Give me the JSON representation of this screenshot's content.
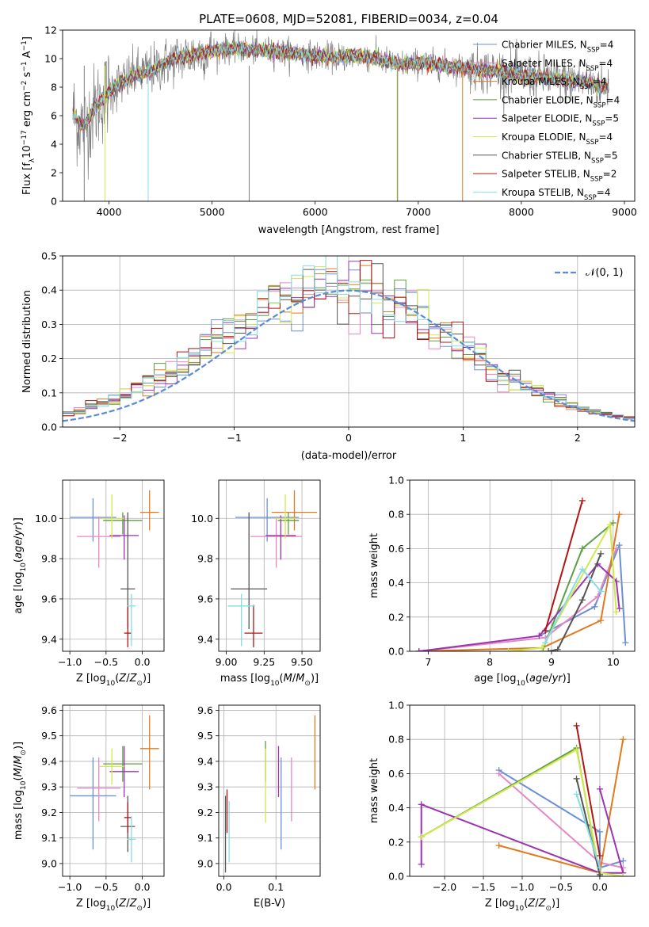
{
  "figure": {
    "title": "PLATE=0608, MJD=52081, FIBERID=0034, z=0.04"
  },
  "models": [
    {
      "name": "Chabrier MILES, N$_{SSP}$=4",
      "label_main": "Chabrier MILES, N",
      "label_sub": "SSP",
      "label_tail": "=4",
      "color": "#6b8fd6"
    },
    {
      "name": "Salpeter MILES, N$_{SSP}$=4",
      "label_main": "Salpeter MILES, N",
      "label_sub": "SSP",
      "label_tail": "=4",
      "color": "#e488c4"
    },
    {
      "name": "Kroupa MILES, N$_{SSP}$=4",
      "label_main": "Kroupa MILES, N",
      "label_sub": "SSP",
      "label_tail": "=4",
      "color": "#e07a1f"
    },
    {
      "name": "Chabrier ELODIE, N$_{SSP}$=4",
      "label_main": "Chabrier ELODIE, N",
      "label_sub": "SSP",
      "label_tail": "=4",
      "color": "#5e9e46"
    },
    {
      "name": "Salpeter ELODIE, N$_{SSP}$=5",
      "label_main": "Salpeter ELODIE, N",
      "label_sub": "SSP",
      "label_tail": "=5",
      "color": "#9b34b0"
    },
    {
      "name": "Kroupa ELODIE, N$_{SSP}$=4",
      "label_main": "Kroupa ELODIE, N",
      "label_sub": "SSP",
      "label_tail": "=4",
      "color": "#d3e84a"
    },
    {
      "name": "Chabrier STELIB, N$_{SSP}$=5",
      "label_main": "Chabrier STELIB, N",
      "label_sub": "SSP",
      "label_tail": "=5",
      "color": "#555555"
    },
    {
      "name": "Salpeter STELIB, N$_{SSP}$=2",
      "label_main": "Salpeter STELIB, N",
      "label_sub": "SSP",
      "label_tail": "=2",
      "color": "#b01616"
    },
    {
      "name": "Kroupa STELIB, N$_{SSP}$=4",
      "label_main": "Kroupa STELIB, N",
      "label_sub": "SSP",
      "label_tail": "=4",
      "color": "#86dde4"
    }
  ],
  "chart_data": [
    {
      "type": "line",
      "id": "spectrum",
      "title": "PLATE=0608, MJD=52081, FIBERID=0034, z=0.04",
      "xlabel": "wavelength [Angstrom, rest frame]",
      "ylabel_parts": [
        "Flux [f",
        "λ",
        "10",
        "−17",
        " erg cm",
        "−2",
        " s",
        "−1",
        " A",
        "−1",
        "]"
      ],
      "xlim": [
        3550,
        9100
      ],
      "ylim": [
        0,
        12
      ],
      "xticks": [
        4000,
        5000,
        6000,
        7000,
        8000,
        9000
      ],
      "yticks": [
        0,
        2,
        4,
        6,
        8,
        10,
        12
      ],
      "data_color": "#808080",
      "grid": false,
      "legend": "right",
      "continuum_x": [
        3650,
        3700,
        3760,
        3850,
        3950,
        4050,
        4150,
        4250,
        4350,
        4450,
        4550,
        4650,
        4750,
        4850,
        4950,
        5050,
        5200,
        5400,
        5600,
        5800,
        6000,
        6200,
        6400,
        6600,
        6800,
        7000,
        7200,
        7400,
        7600,
        7800,
        8000,
        8200,
        8400,
        8600,
        8800
      ],
      "continuum_y": [
        6.2,
        5.6,
        5.2,
        6.4,
        7.3,
        8.0,
        8.4,
        8.9,
        9.0,
        9.3,
        9.7,
        10.0,
        10.2,
        10.3,
        10.5,
        10.6,
        10.7,
        10.6,
        10.5,
        10.4,
        10.2,
        10.1,
        10.2,
        10.0,
        9.6,
        9.7,
        9.6,
        9.4,
        9.2,
        9.1,
        8.8,
        8.7,
        8.5,
        8.4,
        8.0
      ]
    },
    {
      "type": "line",
      "id": "residuals",
      "xlabel": "(data-model)/error",
      "ylabel": "Normed distribution",
      "xlim": [
        -2.5,
        2.5
      ],
      "ylim": [
        0,
        0.5
      ],
      "xticks": [
        -2,
        -1,
        0,
        1,
        2
      ],
      "xtick_labels": [
        "−2",
        "−1",
        "0",
        "1",
        "2"
      ],
      "yticks": [
        0.0,
        0.1,
        0.2,
        0.3,
        0.4,
        0.5
      ],
      "ytick_labels": [
        "0.0",
        "0.1",
        "0.2",
        "0.3",
        "0.4",
        "0.5"
      ],
      "grid": true,
      "legend_label": "𝒩(0, 1)",
      "legend_color": "#5b8ad6",
      "bin_start": -2.5,
      "bin_width": 0.1
    },
    {
      "type": "scatter",
      "id": "age_vs_Z",
      "xlabel": "Z [log10(Z/Z⊙)]",
      "ylabel": "age  [log10(age/yr)]",
      "xlim": [
        -1.1,
        0.3
      ],
      "ylim": [
        9.34,
        10.19
      ],
      "xticks": [
        -1.0,
        -0.5,
        0.0
      ],
      "xtick_labels": [
        "−1.0",
        "−0.5",
        "0.0"
      ],
      "yticks": [
        9.4,
        9.6,
        9.8,
        10.0
      ],
      "ytick_labels": [
        "9.4",
        "9.6",
        "9.8",
        "10.0"
      ],
      "grid": true,
      "points": [
        {
          "m": 0,
          "x": -0.68,
          "xerr": [
            0.32,
            0.32
          ],
          "y": 10.005,
          "yerr": [
            0.12,
            0.095
          ]
        },
        {
          "m": 1,
          "x": -0.6,
          "xerr": [
            0.3,
            0.3
          ],
          "y": 9.91,
          "yerr": [
            0.155,
            0.1
          ]
        },
        {
          "m": 2,
          "x": 0.1,
          "xerr": [
            0.13,
            0.13
          ],
          "y": 10.03,
          "yerr": [
            0.09,
            0.11
          ]
        },
        {
          "m": 3,
          "x": -0.27,
          "xerr": [
            0.27,
            0.27
          ],
          "y": 9.99,
          "yerr": [
            0.07,
            0.04
          ]
        },
        {
          "m": 4,
          "x": -0.25,
          "xerr": [
            0.2,
            0.2
          ],
          "y": 9.915,
          "yerr": [
            0.12,
            0.1
          ]
        },
        {
          "m": 5,
          "x": -0.42,
          "xerr": [
            0.17,
            0.17
          ],
          "y": 10.0,
          "yerr": [
            0.1,
            0.12
          ]
        },
        {
          "m": 6,
          "x": -0.2,
          "xerr": [
            0.1,
            0.1
          ],
          "y": 9.65,
          "yerr": [
            0.2,
            0.38
          ]
        },
        {
          "m": 7,
          "x": -0.2,
          "xerr": [
            0.05,
            0.05
          ],
          "y": 9.43,
          "yerr": [
            0.07,
            0.14
          ]
        },
        {
          "m": 8,
          "x": -0.15,
          "xerr": [
            0.06,
            0.06
          ],
          "y": 9.565,
          "yerr": [
            0.2,
            0.06
          ]
        }
      ]
    },
    {
      "type": "scatter",
      "id": "age_vs_mass",
      "xlabel": "mass [log10(M/M⊙)]",
      "ylabel": "",
      "xlim": [
        8.95,
        9.62
      ],
      "ylim": [
        9.34,
        10.19
      ],
      "xticks": [
        9.0,
        9.25,
        9.5
      ],
      "xtick_labels": [
        "9.00",
        "9.25",
        "9.50"
      ],
      "yticks": [
        9.4,
        9.6,
        9.8,
        10.0
      ],
      "ytick_labels": [
        "9.4",
        "9.6",
        "9.8",
        "10.0"
      ],
      "grid": true,
      "points": [
        {
          "m": 0,
          "x": 9.27,
          "xerr": [
            0.21,
            0.21
          ],
          "y": 10.005,
          "yerr": [
            0.12,
            0.095
          ]
        },
        {
          "m": 1,
          "x": 9.33,
          "xerr": [
            0.17,
            0.17
          ],
          "y": 9.91,
          "yerr": [
            0.155,
            0.1
          ]
        },
        {
          "m": 2,
          "x": 9.45,
          "xerr": [
            0.15,
            0.15
          ],
          "y": 10.03,
          "yerr": [
            0.09,
            0.11
          ]
        },
        {
          "m": 3,
          "x": 9.41,
          "xerr": [
            0.07,
            0.07
          ],
          "y": 9.99,
          "yerr": [
            0.07,
            0.04
          ]
        },
        {
          "m": 4,
          "x": 9.36,
          "xerr": [
            0.1,
            0.1
          ],
          "y": 9.915,
          "yerr": [
            0.12,
            0.1
          ]
        },
        {
          "m": 5,
          "x": 9.39,
          "xerr": [
            0.07,
            0.07
          ],
          "y": 10.0,
          "yerr": [
            0.1,
            0.12
          ]
        },
        {
          "m": 6,
          "x": 9.15,
          "xerr": [
            0.12,
            0.12
          ],
          "y": 9.65,
          "yerr": [
            0.2,
            0.38
          ]
        },
        {
          "m": 7,
          "x": 9.18,
          "xerr": [
            0.06,
            0.06
          ],
          "y": 9.43,
          "yerr": [
            0.07,
            0.14
          ]
        },
        {
          "m": 8,
          "x": 9.1,
          "xerr": [
            0.09,
            0.09
          ],
          "y": 9.565,
          "yerr": [
            0.2,
            0.06
          ]
        }
      ]
    },
    {
      "type": "line",
      "id": "massweight_vs_age",
      "xlabel": "age  [log10(age/yr)]",
      "ylabel": "mass weight",
      "xlim": [
        6.7,
        10.35
      ],
      "ylim": [
        0,
        1.0
      ],
      "xticks": [
        7,
        8,
        9,
        10
      ],
      "xtick_labels": [
        "7",
        "8",
        "9",
        "10"
      ],
      "yticks": [
        0.0,
        0.2,
        0.4,
        0.6,
        0.8,
        1.0
      ],
      "ytick_labels": [
        "0.0",
        "0.2",
        "0.4",
        "0.6",
        "0.8",
        "1.0"
      ],
      "grid": true,
      "series": [
        {
          "m": 0,
          "x": [
            8.8,
            9.7,
            10.1,
            10.2
          ],
          "y": [
            0.09,
            0.26,
            0.62,
            0.05
          ]
        },
        {
          "m": 1,
          "x": [
            6.85,
            8.9,
            9.75,
            10.05
          ],
          "y": [
            0.0,
            0.08,
            0.32,
            0.6
          ]
        },
        {
          "m": 2,
          "x": [
            6.85,
            8.85,
            9.8,
            10.1
          ],
          "y": [
            0.0,
            0.02,
            0.18,
            0.8
          ]
        },
        {
          "m": 3,
          "x": [
            8.85,
            9.5,
            10.0
          ],
          "y": [
            0.0,
            0.6,
            0.75
          ]
        },
        {
          "m": 4,
          "x": [
            6.85,
            8.8,
            9.75,
            10.05,
            10.1
          ],
          "y": [
            0.0,
            0.09,
            0.51,
            0.41,
            0.25
          ]
        },
        {
          "m": 5,
          "x": [
            8.3,
            8.85,
            9.95,
            10.05
          ],
          "y": [
            0.0,
            0.02,
            0.74,
            0.23
          ]
        },
        {
          "m": 6,
          "x": [
            8.95,
            9.1,
            9.5,
            9.8
          ],
          "y": [
            0.0,
            0.01,
            0.3,
            0.57
          ]
        },
        {
          "m": 7,
          "x": [
            8.9,
            9.5
          ],
          "y": [
            0.12,
            0.88
          ]
        },
        {
          "m": 8,
          "x": [
            8.9,
            9.5,
            9.8
          ],
          "y": [
            0.05,
            0.48,
            0.35
          ]
        }
      ]
    },
    {
      "type": "scatter",
      "id": "mass_vs_Z",
      "xlabel": "Z [log10(Z/Z⊙)]",
      "ylabel": "mass [log10(M/M⊙)]",
      "xlim": [
        -1.1,
        0.3
      ],
      "ylim": [
        8.95,
        9.62
      ],
      "xticks": [
        -1.0,
        -0.5,
        0.0
      ],
      "xtick_labels": [
        "−1.0",
        "−0.5",
        "0.0"
      ],
      "yticks": [
        9.0,
        9.1,
        9.2,
        9.3,
        9.4,
        9.5,
        9.6
      ],
      "ytick_labels": [
        "9.0",
        "9.1",
        "9.2",
        "9.3",
        "9.4",
        "9.5",
        "9.6"
      ],
      "grid": true,
      "points": [
        {
          "m": 0,
          "x": -0.68,
          "xerr": [
            0.32,
            0.32
          ],
          "y": 9.265,
          "yerr": [
            0.21,
            0.15
          ]
        },
        {
          "m": 1,
          "x": -0.6,
          "xerr": [
            0.3,
            0.3
          ],
          "y": 9.295,
          "yerr": [
            0.13,
            0.12
          ]
        },
        {
          "m": 2,
          "x": 0.1,
          "xerr": [
            0.13,
            0.13
          ],
          "y": 9.45,
          "yerr": [
            0.16,
            0.13
          ]
        },
        {
          "m": 3,
          "x": -0.27,
          "xerr": [
            0.27,
            0.27
          ],
          "y": 9.39,
          "yerr": [
            0.07,
            0.07
          ]
        },
        {
          "m": 4,
          "x": -0.25,
          "xerr": [
            0.2,
            0.2
          ],
          "y": 9.36,
          "yerr": [
            0.1,
            0.1
          ]
        },
        {
          "m": 5,
          "x": -0.42,
          "xerr": [
            0.17,
            0.17
          ],
          "y": 9.38,
          "yerr": [
            0.07,
            0.07
          ]
        },
        {
          "m": 6,
          "x": -0.2,
          "xerr": [
            0.1,
            0.1
          ],
          "y": 9.145,
          "yerr": [
            0.1,
            0.12
          ]
        },
        {
          "m": 7,
          "x": -0.2,
          "xerr": [
            0.05,
            0.05
          ],
          "y": 9.18,
          "yerr": [
            0.06,
            0.06
          ]
        },
        {
          "m": 8,
          "x": -0.15,
          "xerr": [
            0.06,
            0.06
          ],
          "y": 9.095,
          "yerr": [
            0.09,
            0.09
          ]
        }
      ]
    },
    {
      "type": "scatter",
      "id": "mass_vs_ebv",
      "xlabel": "E(B-V)",
      "ylabel": "",
      "xlim": [
        -0.01,
        0.185
      ],
      "ylim": [
        8.95,
        9.62
      ],
      "xticks": [
        0.0,
        0.1
      ],
      "xtick_labels": [
        "0.0",
        "0.1"
      ],
      "yticks": [
        9.0,
        9.1,
        9.2,
        9.3,
        9.4,
        9.5,
        9.6
      ],
      "ytick_labels": [
        "9.0",
        "9.1",
        "9.2",
        "9.3",
        "9.4",
        "9.5",
        "9.6"
      ],
      "grid": true,
      "points": [
        {
          "m": 0,
          "x": 0.11,
          "xerr": [
            0,
            0
          ],
          "y": 9.265,
          "yerr": [
            0.21,
            0.15
          ]
        },
        {
          "m": 1,
          "x": 0.13,
          "xerr": [
            0,
            0
          ],
          "y": 9.295,
          "yerr": [
            0.13,
            0.12
          ]
        },
        {
          "m": 2,
          "x": 0.175,
          "xerr": [
            0,
            0
          ],
          "y": 9.45,
          "yerr": [
            0.16,
            0.13
          ]
        },
        {
          "m": 3,
          "x": 0.08,
          "xerr": [
            0,
            0
          ],
          "y": 9.39,
          "yerr": [
            0.07,
            0.09
          ]
        },
        {
          "m": 4,
          "x": 0.105,
          "xerr": [
            0,
            0
          ],
          "y": 9.36,
          "yerr": [
            0.1,
            0.1
          ]
        },
        {
          "m": 5,
          "x": 0.08,
          "xerr": [
            0,
            0
          ],
          "y": 9.38,
          "yerr": [
            0.22,
            0.07
          ]
        },
        {
          "m": 6,
          "x": 0.003,
          "xerr": [
            0,
            0
          ],
          "y": 9.145,
          "yerr": [
            0.18,
            0.12
          ]
        },
        {
          "m": 7,
          "x": 0.006,
          "xerr": [
            0,
            0
          ],
          "y": 9.18,
          "yerr": [
            0.06,
            0.11
          ]
        },
        {
          "m": 8,
          "x": 0.01,
          "xerr": [
            0,
            0
          ],
          "y": 9.095,
          "yerr": [
            0.09,
            0.15
          ]
        }
      ]
    },
    {
      "type": "line",
      "id": "massweight_vs_Z",
      "xlabel": "Z [log10(Z/Z⊙)]",
      "ylabel": "mass weight",
      "xlim": [
        -2.45,
        0.45
      ],
      "ylim": [
        0,
        1.0
      ],
      "xticks": [
        -2.0,
        -1.5,
        -1.0,
        -0.5,
        0.0
      ],
      "xtick_labels": [
        "−2.0",
        "−1.5",
        "−1.0",
        "−0.5",
        "0.0"
      ],
      "yticks": [
        0.0,
        0.2,
        0.4,
        0.6,
        0.8,
        1.0
      ],
      "ytick_labels": [
        "0.0",
        "0.2",
        "0.4",
        "0.6",
        "0.8",
        "1.0"
      ],
      "grid": true,
      "series": [
        {
          "m": 0,
          "x": [
            -1.3,
            0.0,
            0.0,
            0.3
          ],
          "y": [
            0.62,
            0.26,
            0.05,
            0.09
          ]
        },
        {
          "m": 1,
          "x": [
            -1.3,
            0.0,
            0.3
          ],
          "y": [
            0.6,
            0.08,
            0.05
          ]
        },
        {
          "m": 2,
          "x": [
            -1.3,
            0.0,
            0.3
          ],
          "y": [
            0.18,
            0.02,
            0.8
          ]
        },
        {
          "m": 3,
          "x": [
            -2.3,
            -0.3,
            0.0
          ],
          "y": [
            0.23,
            0.75,
            0.0
          ]
        },
        {
          "m": 4,
          "x": [
            -2.3,
            -2.3,
            0.0,
            0.3,
            0.0
          ],
          "y": [
            0.07,
            0.42,
            0.02,
            0.02,
            0.51
          ]
        },
        {
          "m": 5,
          "x": [
            -2.3,
            -0.3,
            0.0,
            0.3
          ],
          "y": [
            0.23,
            0.74,
            0.02,
            0.0
          ]
        },
        {
          "m": 6,
          "x": [
            -0.3,
            0.0,
            0.0
          ],
          "y": [
            0.57,
            0.01,
            0.0
          ]
        },
        {
          "m": 7,
          "x": [
            -0.3,
            0.0
          ],
          "y": [
            0.88,
            0.12
          ]
        },
        {
          "m": 8,
          "x": [
            -0.3,
            0.0
          ],
          "y": [
            0.48,
            0.05
          ]
        }
      ]
    }
  ]
}
